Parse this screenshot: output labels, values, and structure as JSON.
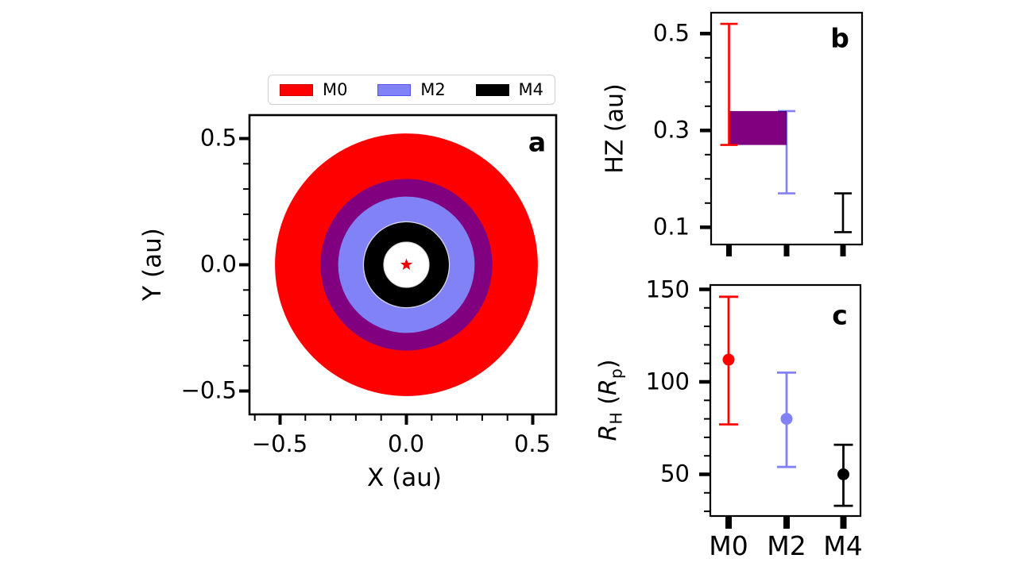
{
  "legend": {
    "items": [
      {
        "label": "M0",
        "color": "#ff0000",
        "edge": "#cc0000"
      },
      {
        "label": "M2",
        "color": "#8282f7",
        "edge": "#5353ef"
      },
      {
        "label": "M4",
        "color": "#000000",
        "edge": "#000000"
      }
    ]
  },
  "panel_a": {
    "letter": "a",
    "xlabel": "X (au)",
    "ylabel": "Y (au)",
    "xticks": [
      "−0.5",
      "0.0",
      "0.5"
    ],
    "yticks": [
      "0.5",
      "0.0",
      "−0.5"
    ]
  },
  "panel_b": {
    "letter": "b",
    "ylabel": "HZ (au)",
    "yticks": [
      "0.5",
      "0.3",
      "0.1"
    ]
  },
  "panel_c": {
    "letter": "c",
    "ylabel_parts": {
      "r1": "R",
      "sub1": "H",
      "mid": " (",
      "r2": "R",
      "sub2": "p",
      "end": ")"
    },
    "yticks": [
      "150",
      "100",
      "50"
    ],
    "xticks": [
      "M0",
      "M2",
      "M4"
    ]
  },
  "chart_data": [
    {
      "type": "area",
      "panel": "a",
      "description": "Concentric habitable-zone annuli around central star",
      "xlabel": "X (au)",
      "ylabel": "Y (au)",
      "xlim": [
        -0.62,
        0.59
      ],
      "ylim": [
        -0.59,
        0.59
      ],
      "series": [
        {
          "name": "M0",
          "inner_au": 0.27,
          "outer_au": 0.52,
          "color": "#ff0000"
        },
        {
          "name": "M2",
          "inner_au": 0.17,
          "outer_au": 0.34,
          "color": "#8282f7"
        },
        {
          "name": "M4",
          "inner_au": 0.09,
          "outer_au": 0.17,
          "color": "#000000"
        }
      ],
      "overlap": {
        "name": "M0∩M2",
        "inner_au": 0.27,
        "outer_au": 0.34,
        "color": "#800080"
      },
      "star": {
        "x": 0,
        "y": 0,
        "marker": "star",
        "color": "#ee0000"
      },
      "grid": false
    },
    {
      "type": "errorbar-range",
      "panel": "b",
      "ylabel": "HZ (au)",
      "ylim": [
        0.06,
        0.54
      ],
      "yticks": [
        0.1,
        0.3,
        0.5
      ],
      "categories": [
        "M0",
        "M2",
        "M4"
      ],
      "ranges": [
        {
          "name": "M0",
          "lo": 0.27,
          "hi": 0.52,
          "color": "#ff0000"
        },
        {
          "name": "M2",
          "lo": 0.17,
          "hi": 0.34,
          "color": "#8282f7"
        },
        {
          "name": "M4",
          "lo": 0.09,
          "hi": 0.17,
          "color": "#000000"
        }
      ],
      "overlap_rect": {
        "from": "M0",
        "to": "M2",
        "lo": 0.27,
        "hi": 0.34,
        "color": "#800080"
      },
      "grid": false
    },
    {
      "type": "scatter-errorbar",
      "panel": "c",
      "ylabel": "R_H (R_p)",
      "ylim": [
        27,
        153
      ],
      "yticks": [
        50,
        100,
        150
      ],
      "categories": [
        "M0",
        "M2",
        "M4"
      ],
      "points": [
        {
          "name": "M0",
          "value": 112,
          "lo": 77,
          "hi": 146,
          "color": "#ff0000"
        },
        {
          "name": "M2",
          "value": 80,
          "lo": 54,
          "hi": 105,
          "color": "#8282f7"
        },
        {
          "name": "M4",
          "value": 50,
          "lo": 33,
          "hi": 66,
          "color": "#000000"
        }
      ],
      "grid": false
    }
  ]
}
